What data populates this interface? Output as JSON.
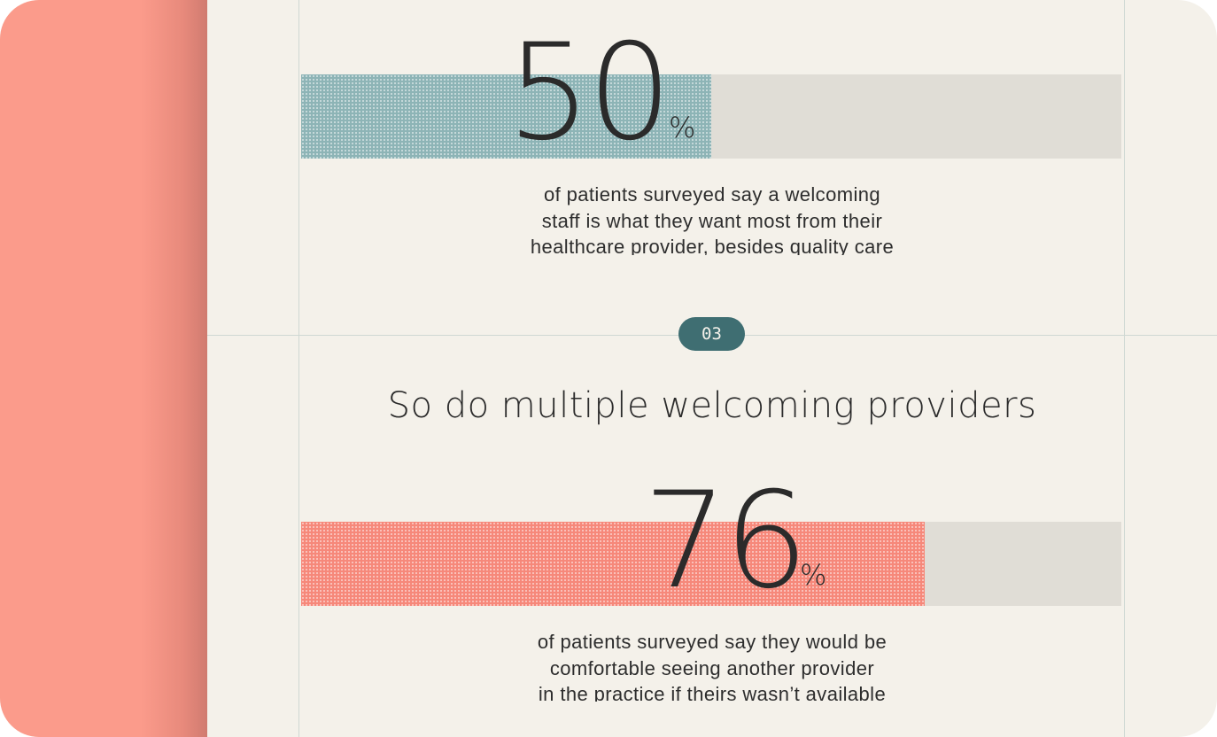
{
  "stats": [
    {
      "value": "50",
      "unit": "%",
      "fill_percent": 50,
      "fill_color": "#8db4b6",
      "caption_lines": [
        "of patients surveyed say a welcoming",
        "staff is what they want most from their",
        "healthcare provider, besides quality care"
      ]
    },
    {
      "value": "76",
      "unit": "%",
      "fill_percent": 76,
      "fill_color": "#f6887a",
      "caption_lines": [
        "of patients surveyed say they would be",
        "comfortable seeing another provider",
        "in the practice if theirs wasn’t available"
      ]
    }
  ],
  "section": {
    "badge": "03",
    "heading": "So do multiple welcoming providers"
  },
  "colors": {
    "background": "#f4f1ea",
    "accent_panel": "#fb9b8b",
    "badge": "#3f6e72",
    "track": "#e0ddd6"
  }
}
